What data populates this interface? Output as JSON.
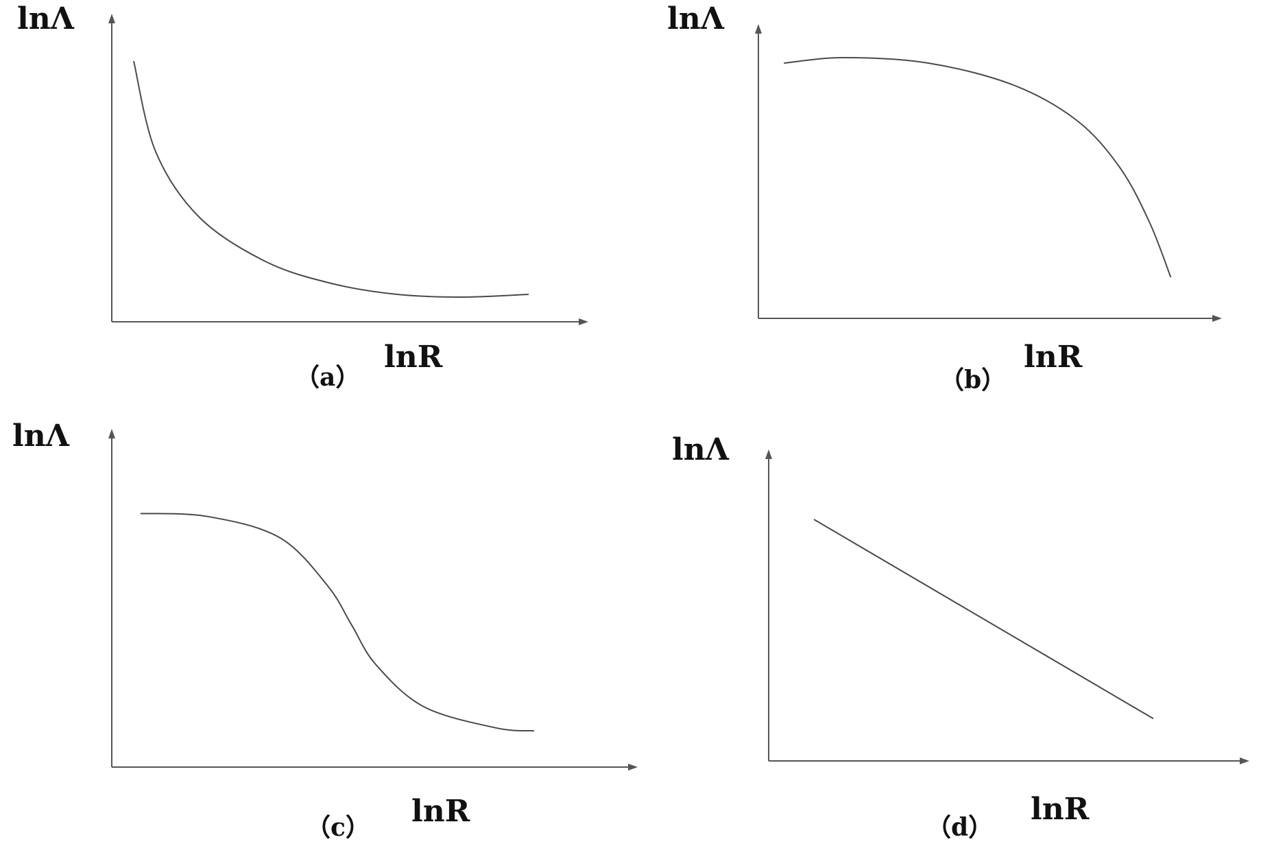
{
  "panels": [
    {
      "label": "（a）",
      "ylabel": "lnΛ",
      "xlabel": "lnR",
      "chart_data": {
        "type": "line",
        "shape": "convex-decreasing",
        "ylabel": "lnΛ",
        "xlabel": "lnR",
        "series": [
          {
            "x": [
              0.05,
              0.1,
              0.2,
              0.35,
              0.5,
              0.65,
              0.8,
              0.95
            ],
            "y": [
              0.95,
              0.62,
              0.38,
              0.22,
              0.14,
              0.1,
              0.09,
              0.1
            ]
          }
        ]
      }
    },
    {
      "label": "（b）",
      "ylabel": "lnΛ",
      "xlabel": "lnR",
      "chart_data": {
        "type": "line",
        "shape": "concave-decreasing",
        "ylabel": "lnΛ",
        "xlabel": "lnR",
        "series": [
          {
            "x": [
              0.06,
              0.2,
              0.4,
              0.6,
              0.75,
              0.85,
              0.92,
              0.97
            ],
            "y": [
              0.93,
              0.95,
              0.93,
              0.85,
              0.72,
              0.55,
              0.35,
              0.15
            ]
          }
        ]
      }
    },
    {
      "label": "（c）",
      "ylabel": "lnΛ",
      "xlabel": "lnR",
      "chart_data": {
        "type": "line",
        "shape": "reverse-s",
        "ylabel": "lnΛ",
        "xlabel": "lnR",
        "series": [
          {
            "x": [
              0.06,
              0.2,
              0.35,
              0.45,
              0.5,
              0.55,
              0.65,
              0.8,
              0.88
            ],
            "y": [
              0.84,
              0.83,
              0.76,
              0.6,
              0.47,
              0.34,
              0.2,
              0.13,
              0.12
            ]
          }
        ]
      }
    },
    {
      "label": "（d）",
      "ylabel": "lnΛ",
      "xlabel": "lnR",
      "chart_data": {
        "type": "line",
        "shape": "linear-decreasing",
        "ylabel": "lnΛ",
        "xlabel": "lnR",
        "series": [
          {
            "x": [
              0.1,
              0.85
            ],
            "y": [
              0.8,
              0.14
            ]
          }
        ]
      }
    }
  ],
  "colors": {
    "axis": "#555555",
    "curve": "#4a4a4a",
    "text": "#111111"
  }
}
